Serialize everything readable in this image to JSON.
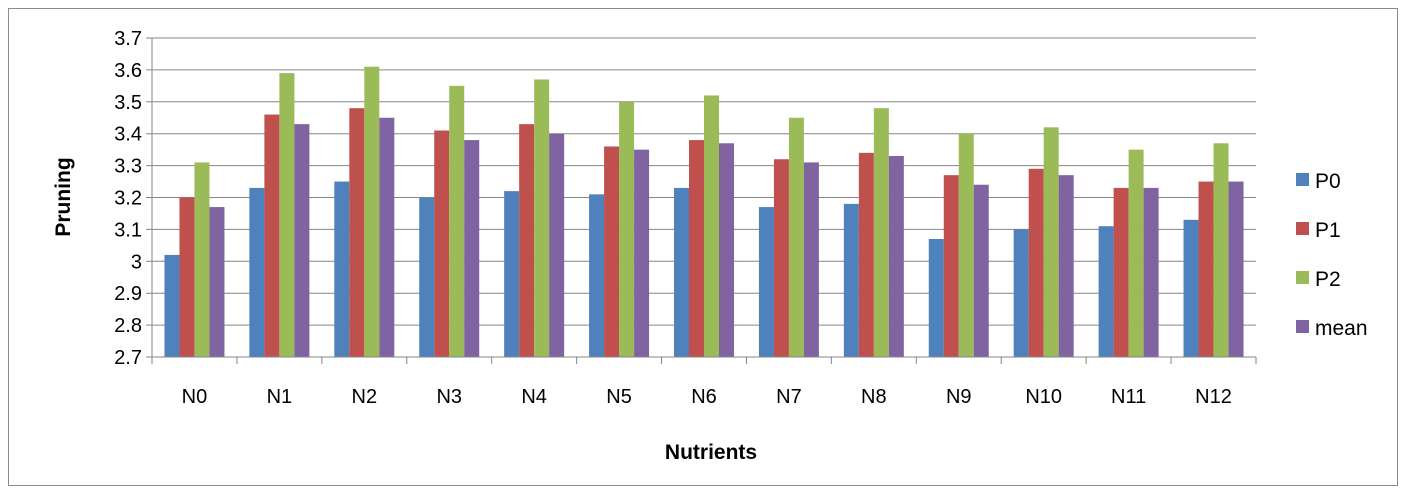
{
  "chart_data": {
    "type": "bar",
    "title": "",
    "xlabel": "Nutrients",
    "ylabel": "Pruning",
    "categories": [
      "N0",
      "N1",
      "N2",
      "N3",
      "N4",
      "N5",
      "N6",
      "N7",
      "N8",
      "N9",
      "N10",
      "N11",
      "N12"
    ],
    "series": [
      {
        "name": "P0",
        "color": "#4f81bd",
        "values": [
          3.02,
          3.23,
          3.25,
          3.2,
          3.22,
          3.21,
          3.23,
          3.17,
          3.18,
          3.07,
          3.1,
          3.11,
          3.13
        ]
      },
      {
        "name": "P1",
        "color": "#c0504d",
        "values": [
          3.2,
          3.46,
          3.48,
          3.41,
          3.43,
          3.36,
          3.38,
          3.32,
          3.34,
          3.27,
          3.29,
          3.23,
          3.25
        ]
      },
      {
        "name": "P2",
        "color": "#9bbb59",
        "values": [
          3.31,
          3.59,
          3.61,
          3.55,
          3.57,
          3.5,
          3.52,
          3.45,
          3.48,
          3.4,
          3.42,
          3.35,
          3.37
        ]
      },
      {
        "name": "mean",
        "color": "#8064a2",
        "values": [
          3.17,
          3.43,
          3.45,
          3.38,
          3.4,
          3.35,
          3.37,
          3.31,
          3.33,
          3.24,
          3.27,
          3.23,
          3.25
        ]
      }
    ],
    "ylim": [
      2.7,
      3.7
    ],
    "yticks": [
      "2.7",
      "2.8",
      "2.9",
      "3",
      "3.1",
      "3.2",
      "3.3",
      "3.4",
      "3.5",
      "3.6",
      "3.7"
    ],
    "grid": true,
    "legend_position": "right"
  }
}
